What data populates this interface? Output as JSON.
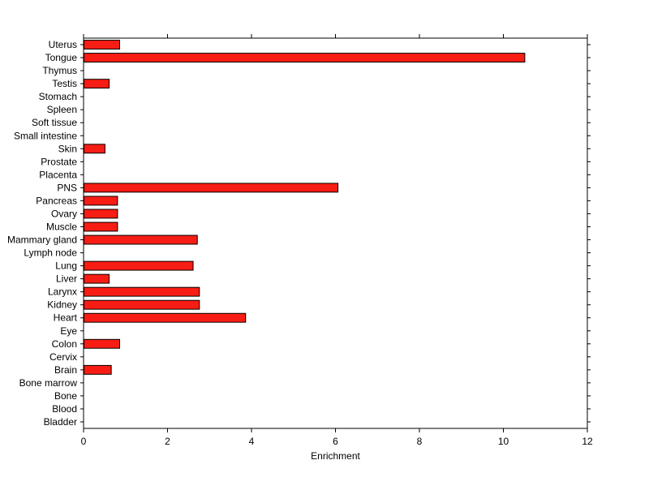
{
  "chart_data": {
    "type": "bar",
    "orientation": "horizontal",
    "title": "",
    "xlabel": "Enrichment",
    "ylabel": "",
    "xlim": [
      0,
      12
    ],
    "xticks": [
      0,
      2,
      4,
      6,
      8,
      10,
      12
    ],
    "grid": false,
    "legend": null,
    "bar_color": "#f81d14",
    "bar_edge_color": "#000000",
    "background_color": "#ffffff",
    "categories": [
      "Uterus",
      "Tongue",
      "Thymus",
      "Testis",
      "Stomach",
      "Spleen",
      "Soft tissue",
      "Small intestine",
      "Skin",
      "Prostate",
      "Placenta",
      "PNS",
      "Pancreas",
      "Ovary",
      "Muscle",
      "Mammary gland",
      "Lymph node",
      "Lung",
      "Liver",
      "Larynx",
      "Kidney",
      "Heart",
      "Eye",
      "Colon",
      "Cervix",
      "Brain",
      "Bone marrow",
      "Bone",
      "Blood",
      "Bladder"
    ],
    "values": [
      0.85,
      10.5,
      0,
      0.6,
      0,
      0,
      0,
      0,
      0.5,
      0,
      0,
      6.05,
      0.8,
      0.8,
      0.8,
      2.7,
      0,
      2.6,
      0.6,
      2.75,
      2.75,
      3.85,
      0,
      0.85,
      0,
      0.65,
      0,
      0,
      0,
      0
    ]
  }
}
